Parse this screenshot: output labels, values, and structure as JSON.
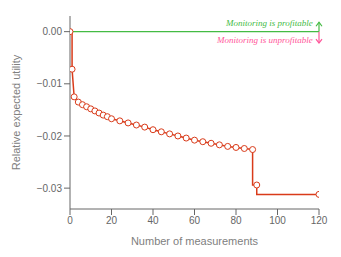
{
  "chart_data": {
    "type": "line",
    "xlabel": "Number of measurements",
    "ylabel": "Relative expected utility",
    "xlim": [
      0,
      120
    ],
    "ylim": [
      -0.034,
      0.003
    ],
    "xticks": [
      0,
      20,
      40,
      60,
      80,
      100,
      120
    ],
    "yticks": [
      {
        "value": 0,
        "label": "0.00"
      },
      {
        "value": -0.01,
        "label": "−0.01"
      },
      {
        "value": -0.02,
        "label": "−0.02"
      },
      {
        "value": -0.03,
        "label": "−0.03"
      }
    ],
    "grid": false,
    "series": [
      {
        "type": "line",
        "color": "#d93b1a",
        "x": [
          0,
          1,
          1,
          2,
          4,
          6,
          8,
          10,
          12,
          14,
          16,
          18,
          20,
          24,
          28,
          32,
          36,
          40,
          44,
          48,
          52,
          56,
          60,
          64,
          68,
          72,
          76,
          80,
          84,
          88,
          88,
          90,
          90,
          120
        ],
        "values": [
          0,
          0,
          -0.0072,
          -0.0125,
          -0.0135,
          -0.014,
          -0.0144,
          -0.0148,
          -0.0152,
          -0.0156,
          -0.016,
          -0.0163,
          -0.0167,
          -0.0171,
          -0.0175,
          -0.0179,
          -0.0183,
          -0.0188,
          -0.0192,
          -0.0196,
          -0.02,
          -0.0204,
          -0.0208,
          -0.0211,
          -0.0214,
          -0.0217,
          -0.022,
          -0.0222,
          -0.0224,
          -0.0226,
          -0.0294,
          -0.0294,
          -0.0312,
          -0.0312
        ]
      },
      {
        "type": "scatter",
        "color": "#d93b1a",
        "marker": "open_circle",
        "x": [
          0,
          1,
          2,
          4,
          6,
          8,
          10,
          12,
          14,
          16,
          18,
          20,
          24,
          28,
          32,
          36,
          40,
          44,
          48,
          52,
          56,
          60,
          64,
          68,
          72,
          76,
          80,
          84,
          88,
          90,
          120
        ],
        "values": [
          0,
          -0.0072,
          -0.0125,
          -0.0135,
          -0.014,
          -0.0144,
          -0.0148,
          -0.0152,
          -0.0156,
          -0.016,
          -0.0163,
          -0.0167,
          -0.0171,
          -0.0175,
          -0.0179,
          -0.0183,
          -0.0188,
          -0.0192,
          -0.0196,
          -0.02,
          -0.0204,
          -0.0208,
          -0.0211,
          -0.0214,
          -0.0217,
          -0.022,
          -0.0222,
          -0.0224,
          -0.0226,
          -0.0294,
          -0.0312
        ]
      }
    ],
    "annotations": [
      {
        "type": "hline",
        "y": 0,
        "color": "#44bb44"
      },
      {
        "type": "arrow",
        "x": 120,
        "y": 0,
        "y_end": 0.0018,
        "color": "#44bb44"
      },
      {
        "type": "arrow",
        "x": 120,
        "y": 0,
        "y_end": -0.0022,
        "color": "#ff5599"
      },
      {
        "type": "text",
        "text": "Monitoring is profitable",
        "x": 117,
        "y": 0.0015,
        "color": "#44bb44"
      },
      {
        "type": "text",
        "text": "Monitoring is unprofitable",
        "x": 117,
        "y": -0.0018,
        "color": "#ff5599"
      }
    ]
  }
}
